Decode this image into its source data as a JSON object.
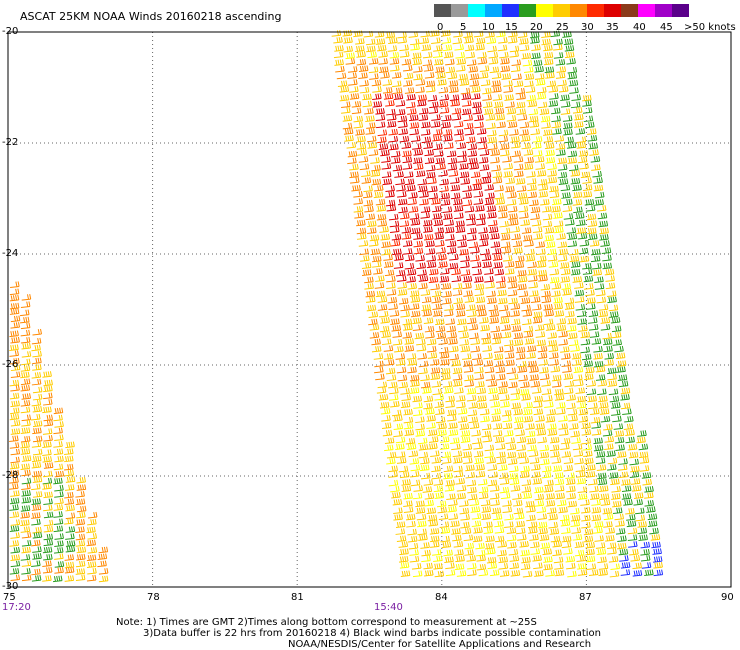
{
  "title": "ASCAT 25KM NOAA Winds 20160218 ascending",
  "legend": {
    "colors": [
      "#555555",
      "#9a9a9a",
      "#00ffff",
      "#00a8ff",
      "#2030ff",
      "#2a9d1f",
      "#ffff00",
      "#ffcc00",
      "#ff8800",
      "#ff2a00",
      "#dd0000",
      "#8b3a1a",
      "#ff00ff",
      "#a000c8",
      "#5a008a"
    ],
    "labels": [
      "0",
      "5",
      "10",
      "15",
      "20",
      "25",
      "30",
      "35",
      "40",
      "45",
      ">50 knots"
    ]
  },
  "axes": {
    "lat_labels": [
      "-20",
      "-22",
      "-24",
      "-26",
      "-28",
      "-30"
    ],
    "lon_labels": [
      "75",
      "78",
      "81",
      "84",
      "87",
      "90"
    ]
  },
  "times": [
    "17:20",
    "15:40"
  ],
  "notes": {
    "line1": "Note: 1) Times are GMT 2)Times along bottom correspond to measurement at ~25S",
    "line2": "3)Data buffer is 22 hrs from 20160218 4) Black wind barbs indicate possible contamination",
    "line3": "NOAA/NESDIS/Center for Satellite Applications and Research"
  },
  "map": {
    "lon_range": [
      75,
      90
    ],
    "lat_range": [
      -30,
      -20
    ],
    "grid": "dotted",
    "content": "wind barbs from two ascending satellite swaths"
  }
}
